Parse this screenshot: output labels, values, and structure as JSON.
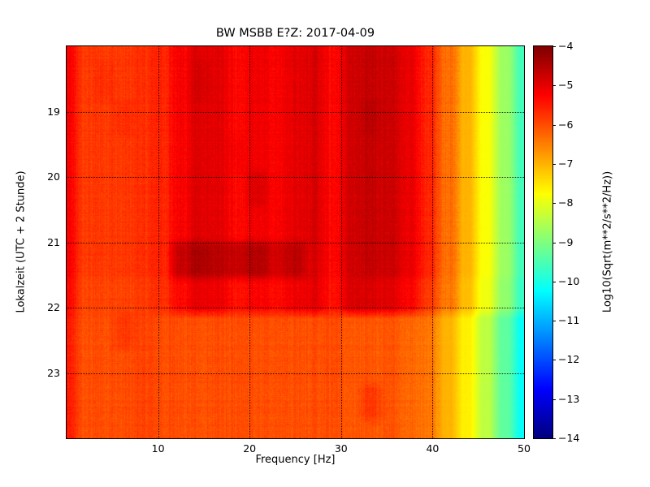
{
  "chart_data": {
    "type": "heatmap",
    "title": "BW MSBB E?Z: 2017-04-09",
    "xlabel": "Frequency [Hz]",
    "ylabel": "Lokalzeit (UTC + 2 Stunde)",
    "colorbar_label": "Log10(Sqrt(m**2/s**2/Hz))",
    "colormap": "jet",
    "x_range_hz": [
      0,
      50
    ],
    "y_range_hours_local": [
      18,
      24
    ],
    "value_range": [
      -14,
      -4
    ],
    "x_ticks": [
      10,
      20,
      30,
      40,
      50
    ],
    "y_ticks": [
      19,
      20,
      21,
      22,
      23
    ],
    "colorbar_ticks": [
      -4,
      -5,
      -6,
      -7,
      -8,
      -9,
      -10,
      -11,
      -12,
      -13,
      -14
    ],
    "grid_on": true,
    "legend_position": "right-colorbar",
    "grid_freq_centers_hz": [
      1,
      3,
      5,
      7,
      9,
      11,
      13,
      15,
      17,
      19,
      21,
      23,
      25,
      27,
      29,
      31,
      33,
      35,
      37,
      39,
      41,
      43,
      45,
      47,
      49
    ],
    "grid_time_centers_hours": [
      18.25,
      18.75,
      19.25,
      19.75,
      20.25,
      20.75,
      21.25,
      21.75,
      22.25,
      22.75,
      23.25,
      23.75
    ],
    "values_log10": [
      [
        -5.2,
        -5.8,
        -5.8,
        -5.8,
        -5.7,
        -5.6,
        -5.2,
        -4.9,
        -5.0,
        -5.3,
        -5.1,
        -5.2,
        -5.0,
        -4.9,
        -5.3,
        -4.8,
        -4.7,
        -4.8,
        -5.0,
        -5.6,
        -6.3,
        -7.0,
        -7.8,
        -8.7,
        -9.6
      ],
      [
        -5.2,
        -5.8,
        -5.7,
        -5.8,
        -5.7,
        -5.6,
        -5.2,
        -4.8,
        -5.0,
        -5.3,
        -5.1,
        -5.2,
        -5.0,
        -4.9,
        -5.3,
        -4.8,
        -4.7,
        -4.8,
        -5.0,
        -5.6,
        -6.3,
        -7.0,
        -7.8,
        -8.7,
        -9.6
      ],
      [
        -5.2,
        -5.8,
        -5.8,
        -5.7,
        -5.7,
        -5.6,
        -5.2,
        -4.9,
        -5.0,
        -5.3,
        -5.1,
        -5.2,
        -5.0,
        -4.9,
        -5.3,
        -4.8,
        -4.6,
        -4.8,
        -5.0,
        -5.6,
        -6.3,
        -7.0,
        -7.8,
        -8.7,
        -9.6
      ],
      [
        -5.2,
        -5.8,
        -5.8,
        -5.8,
        -5.7,
        -5.6,
        -5.2,
        -4.9,
        -5.0,
        -5.2,
        -5.1,
        -5.2,
        -5.0,
        -4.9,
        -5.3,
        -4.8,
        -4.7,
        -4.8,
        -5.0,
        -5.6,
        -6.3,
        -7.0,
        -7.8,
        -8.7,
        -9.6
      ],
      [
        -5.2,
        -5.8,
        -5.8,
        -5.8,
        -5.7,
        -5.6,
        -5.2,
        -4.9,
        -5.0,
        -5.3,
        -4.9,
        -5.2,
        -5.0,
        -4.9,
        -5.3,
        -4.8,
        -4.7,
        -4.8,
        -5.0,
        -5.6,
        -6.3,
        -7.0,
        -7.8,
        -8.7,
        -9.6
      ],
      [
        -5.2,
        -5.8,
        -5.8,
        -5.8,
        -5.7,
        -5.6,
        -5.2,
        -4.9,
        -5.0,
        -5.3,
        -5.1,
        -5.2,
        -5.0,
        -4.9,
        -5.3,
        -4.8,
        -4.7,
        -4.8,
        -5.0,
        -5.6,
        -6.3,
        -7.0,
        -7.8,
        -8.7,
        -9.6
      ],
      [
        -5.2,
        -5.8,
        -5.8,
        -5.8,
        -5.7,
        -5.6,
        -4.7,
        -4.4,
        -4.6,
        -4.7,
        -4.5,
        -4.8,
        -4.6,
        -4.9,
        -5.3,
        -4.8,
        -4.7,
        -4.8,
        -5.0,
        -5.6,
        -6.3,
        -7.0,
        -7.8,
        -8.7,
        -9.6
      ],
      [
        -5.3,
        -5.9,
        -5.9,
        -5.9,
        -5.8,
        -5.7,
        -5.3,
        -5.0,
        -5.1,
        -5.4,
        -5.2,
        -5.3,
        -5.1,
        -5.0,
        -5.4,
        -4.9,
        -4.9,
        -5.0,
        -5.2,
        -5.8,
        -6.4,
        -7.1,
        -7.9,
        -8.8,
        -9.7
      ],
      [
        -5.5,
        -6.0,
        -6.0,
        -5.8,
        -5.9,
        -6.0,
        -6.0,
        -6.0,
        -6.0,
        -6.0,
        -6.0,
        -6.0,
        -6.0,
        -6.0,
        -6.0,
        -6.1,
        -6.1,
        -6.1,
        -6.2,
        -6.4,
        -7.0,
        -7.6,
        -8.4,
        -9.3,
        -10.2
      ],
      [
        -5.5,
        -6.0,
        -6.0,
        -6.0,
        -5.9,
        -6.0,
        -6.0,
        -6.0,
        -6.0,
        -6.0,
        -6.0,
        -6.0,
        -6.0,
        -6.0,
        -6.0,
        -6.1,
        -6.1,
        -6.1,
        -6.2,
        -6.4,
        -7.0,
        -7.6,
        -8.4,
        -9.3,
        -10.2
      ],
      [
        -5.5,
        -6.0,
        -6.0,
        -6.0,
        -5.9,
        -6.0,
        -6.0,
        -6.0,
        -6.0,
        -6.0,
        -6.0,
        -6.0,
        -6.0,
        -6.0,
        -6.0,
        -6.1,
        -5.8,
        -6.1,
        -6.2,
        -6.4,
        -7.0,
        -7.6,
        -8.4,
        -9.3,
        -10.2
      ],
      [
        -5.5,
        -6.0,
        -6.0,
        -6.0,
        -5.9,
        -6.0,
        -6.0,
        -6.0,
        -6.0,
        -6.0,
        -6.0,
        -6.0,
        -6.0,
        -6.0,
        -6.0,
        -6.1,
        -6.1,
        -6.1,
        -6.2,
        -6.4,
        -7.0,
        -7.6,
        -8.4,
        -9.3,
        -10.2
      ]
    ],
    "notes": [
      "Broadband high energy (dark red) between ~12 and 40 Hz until ~21:45 local time",
      "Strong short horizontal burst near 21:00 between ~13 and 25 Hz",
      "Energy falls off above 40 Hz toward green/cyan at 50 Hz"
    ]
  }
}
